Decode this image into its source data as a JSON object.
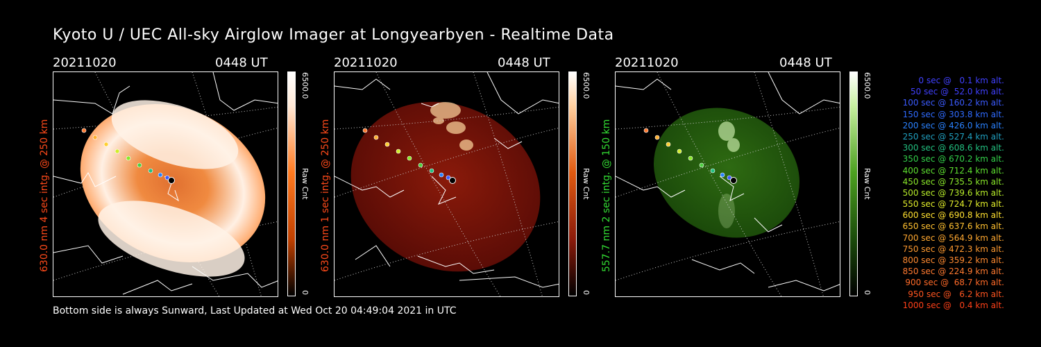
{
  "title": "Kyoto U / UEC All-sky Airglow Imager at Longyearbyen - Realtime Data",
  "panels": [
    {
      "date": "20211020",
      "time": "0448 UT",
      "ylabel": "630.0 nm 4 sec intg. @ 250 km",
      "ylabel_color": "#ff4a1a",
      "cbar_max": "6500.0",
      "cbar_min": "0",
      "cbar_unit": "Raw Cnt",
      "palette": [
        "#000000",
        "#ff6a00",
        "#fff3e6"
      ]
    },
    {
      "date": "20211020",
      "time": "0448 UT",
      "ylabel": "630.0 nm 1 sec intg. @ 250 km",
      "ylabel_color": "#ff4a1a",
      "cbar_max": "6500.0",
      "cbar_min": "0",
      "cbar_unit": "Raw Cnt",
      "palette": [
        "#000000",
        "#c64a00",
        "#ffffff"
      ]
    },
    {
      "date": "20211020",
      "time": "0448 UT",
      "ylabel": "557.7 nm 2 sec intg. @ 150 km",
      "ylabel_color": "#33dd33",
      "cbar_max": "6500.0",
      "cbar_min": "0",
      "cbar_unit": "Raw Cnt",
      "palette": [
        "#000000",
        "#3aa020",
        "#ffffff"
      ]
    }
  ],
  "legend": [
    {
      "text": "0 sec @   0.1 km alt.",
      "color": "#4040ff"
    },
    {
      "text": "50 sec @  52.0 km alt.",
      "color": "#4040ff"
    },
    {
      "text": "100 sec @ 160.2 km alt.",
      "color": "#3b5bff"
    },
    {
      "text": "150 sec @ 303.8 km alt.",
      "color": "#2f6bff"
    },
    {
      "text": "200 sec @ 426.0 km alt.",
      "color": "#2a82ff"
    },
    {
      "text": "250 sec @ 527.4 km alt.",
      "color": "#20a0c0"
    },
    {
      "text": "300 sec @ 608.6 km alt.",
      "color": "#22c080"
    },
    {
      "text": "350 sec @ 670.2 km alt.",
      "color": "#33d04a"
    },
    {
      "text": "400 sec @ 712.4 km alt.",
      "color": "#5ee030"
    },
    {
      "text": "450 sec @ 735.5 km alt.",
      "color": "#8ae82a"
    },
    {
      "text": "500 sec @ 739.6 km alt.",
      "color": "#b8ee2a"
    },
    {
      "text": "550 sec @ 724.7 km alt.",
      "color": "#e2ee2a"
    },
    {
      "text": "600 sec @ 690.8 km alt.",
      "color": "#ffe030"
    },
    {
      "text": "650 sec @ 637.6 km alt.",
      "color": "#ffc030"
    },
    {
      "text": "700 sec @ 564.9 km alt.",
      "color": "#ffa830"
    },
    {
      "text": "750 sec @ 472.3 km alt.",
      "color": "#ff9a30"
    },
    {
      "text": "800 sec @ 359.2 km alt.",
      "color": "#ff8a30"
    },
    {
      "text": "850 sec @ 224.9 km alt.",
      "color": "#ff7a30"
    },
    {
      "text": "900 sec @  68.7 km alt.",
      "color": "#ff6a28"
    },
    {
      "text": "950 sec @   6.2 km alt.",
      "color": "#ff5520"
    },
    {
      "text": "1000 sec @   0.4 km alt.",
      "color": "#ff4018"
    }
  ],
  "footer": "Bottom side is always Sunward, Last Updated at Wed Oct 20 04:49:04 2021 in UTC"
}
